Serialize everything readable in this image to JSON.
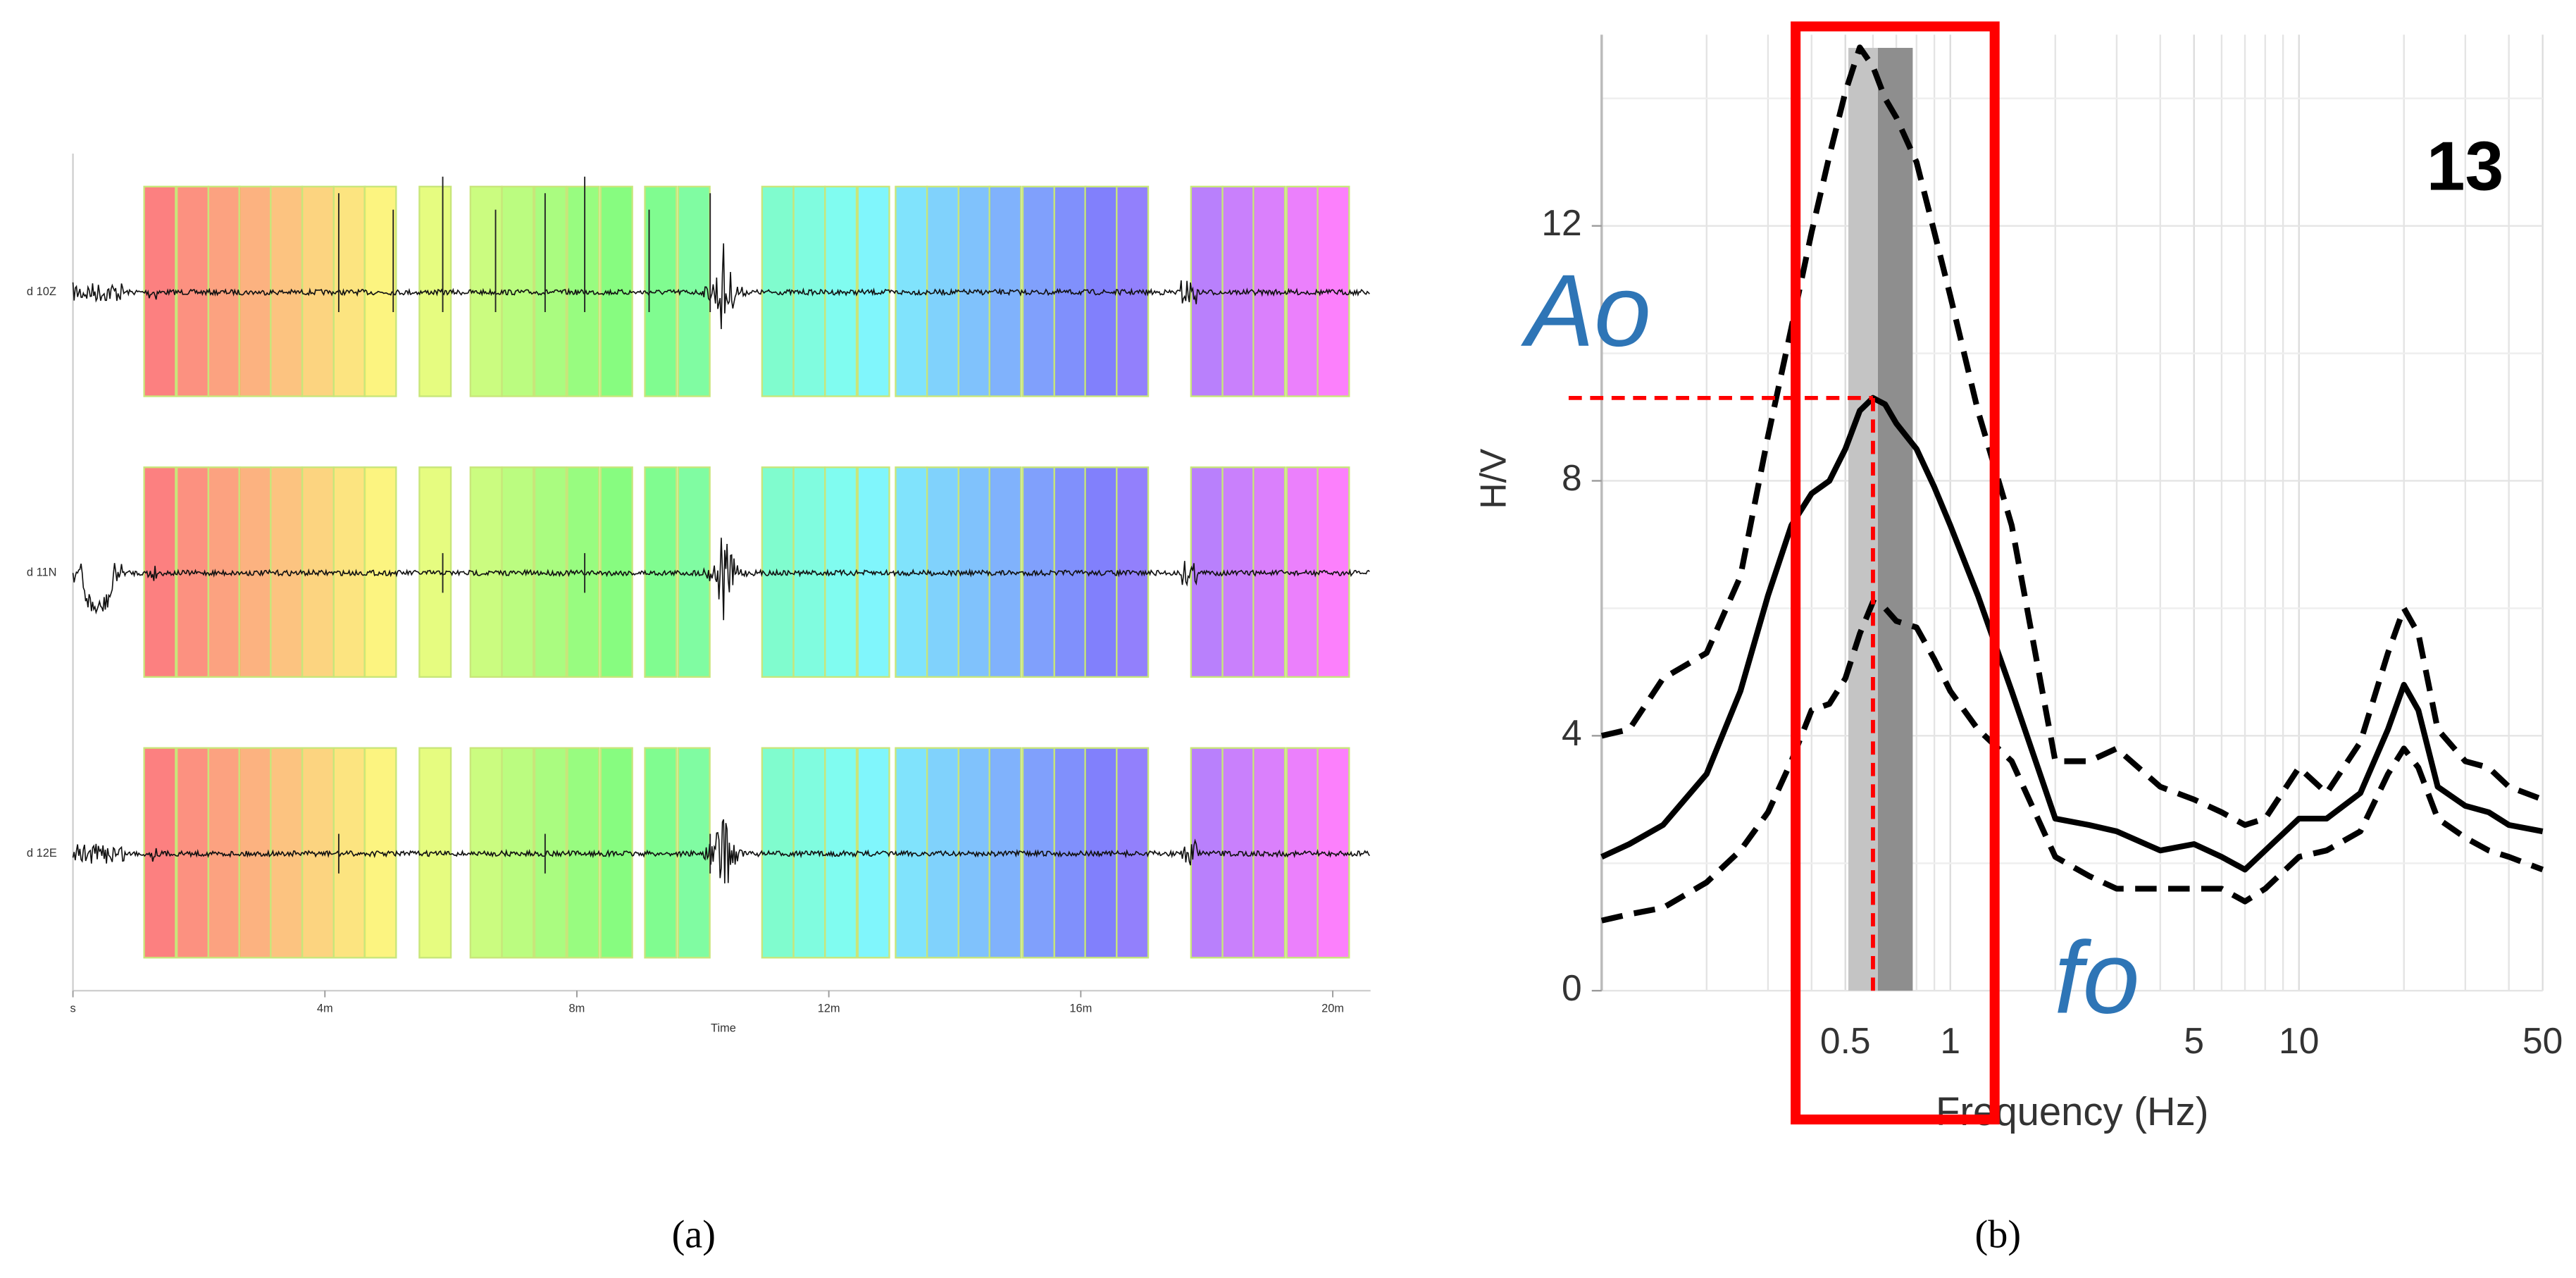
{
  "chart_data": [
    {
      "type": "waveform",
      "channels": [
        "d 10Z",
        "d 11N",
        "d 12E"
      ],
      "x_label": "Time",
      "xlim": [
        0,
        20.6
      ],
      "xticks": [
        {
          "value": 0,
          "label": "s"
        },
        {
          "value": 4,
          "label": "4m"
        },
        {
          "value": 8,
          "label": "8m"
        },
        {
          "value": 12,
          "label": "12m"
        },
        {
          "value": 16,
          "label": "16m"
        },
        {
          "value": 20,
          "label": "20m"
        }
      ],
      "window_starts": [
        1.13,
        1.65,
        2.15,
        2.64,
        3.14,
        3.64,
        4.14,
        4.63,
        5.5,
        6.31,
        6.81,
        7.33,
        7.85,
        8.38,
        9.08,
        9.61,
        10.94,
        11.44,
        11.94,
        12.46,
        13.06,
        13.56,
        14.06,
        14.55,
        15.08,
        15.58,
        16.07,
        16.57,
        17.75,
        18.25,
        18.74,
        19.27,
        19.76
      ],
      "window_length": 0.5,
      "caption": "(a)"
    },
    {
      "type": "line",
      "x_label": "Frequency (Hz)",
      "y_label": "H/V",
      "xscale": "log",
      "xlim": [
        0.1,
        50
      ],
      "ylim": [
        0,
        15
      ],
      "xticks": [
        0.5,
        1,
        5,
        10,
        50
      ],
      "x_minor_ticks": [
        0.2,
        0.3,
        0.4,
        0.6,
        0.7,
        0.8,
        0.9,
        2,
        3,
        4,
        6,
        7,
        8,
        9,
        20,
        30,
        40
      ],
      "yticks": [
        0,
        4,
        8,
        12
      ],
      "y_minor_ticks": [
        2,
        6,
        10,
        14
      ],
      "grid": true,
      "x": [
        0.1,
        0.12,
        0.15,
        0.2,
        0.25,
        0.3,
        0.35,
        0.4,
        0.45,
        0.5,
        0.55,
        0.6,
        0.65,
        0.7,
        0.8,
        0.9,
        1.0,
        1.2,
        1.5,
        2,
        2.5,
        3,
        4,
        5,
        6,
        7,
        8,
        10,
        12,
        15,
        18,
        20,
        22,
        25,
        30,
        35,
        40,
        50
      ],
      "series": [
        {
          "color": "#000000",
          "dashed": false,
          "values": [
            2.1,
            2.3,
            2.6,
            3.4,
            4.7,
            6.2,
            7.3,
            7.8,
            8.0,
            8.5,
            9.1,
            9.3,
            9.2,
            8.9,
            8.5,
            7.9,
            7.3,
            6.2,
            4.7,
            2.7,
            2.6,
            2.5,
            2.2,
            2.3,
            2.1,
            1.9,
            2.2,
            2.7,
            2.7,
            3.1,
            4.1,
            4.8,
            4.4,
            3.2,
            2.9,
            2.8,
            2.6,
            2.5
          ]
        },
        {
          "color": "#000000",
          "dashed": true,
          "values": [
            4.0,
            4.1,
            4.9,
            5.3,
            6.5,
            8.7,
            10.4,
            11.9,
            13.1,
            14.1,
            14.8,
            14.5,
            14.0,
            13.7,
            13.0,
            11.9,
            10.9,
            9.1,
            7.3,
            3.6,
            3.6,
            3.8,
            3.2,
            3.0,
            2.8,
            2.6,
            2.7,
            3.5,
            3.1,
            3.9,
            5.3,
            6.0,
            5.6,
            4.1,
            3.6,
            3.5,
            3.2,
            3.0
          ]
        },
        {
          "color": "#000000",
          "dashed": true,
          "values": [
            1.1,
            1.2,
            1.3,
            1.7,
            2.2,
            2.8,
            3.6,
            4.4,
            4.5,
            4.9,
            5.6,
            6.1,
            6.0,
            5.8,
            5.7,
            5.2,
            4.7,
            4.1,
            3.6,
            2.1,
            1.8,
            1.6,
            1.6,
            1.6,
            1.6,
            1.4,
            1.6,
            2.1,
            2.2,
            2.5,
            3.4,
            3.8,
            3.5,
            2.7,
            2.4,
            2.2,
            2.1,
            1.9
          ]
        }
      ],
      "bands": [
        {
          "range": [
            0.51,
            0.78
          ],
          "color": "#c4c4c4"
        },
        {
          "range": [
            0.62,
            0.78
          ],
          "color": "#8e8e8e"
        }
      ],
      "peak": {
        "x": 0.6,
        "y": 9.3,
        "color": "#ff0000"
      },
      "highlight": {
        "range": [
          0.36,
          1.34
        ],
        "color": "#ff0000"
      },
      "annotations": [
        {
          "text": "13",
          "color": "#000000"
        },
        {
          "text": "Ao",
          "color": "#2e75b6"
        },
        {
          "text": "fo",
          "color": "#2e75b6"
        }
      ],
      "caption": "(b)"
    }
  ]
}
